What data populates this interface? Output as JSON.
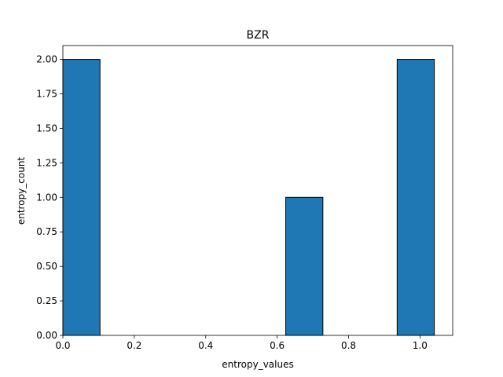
{
  "chart_data": {
    "type": "bar",
    "title": "BZR",
    "xlabel": "entropy_values",
    "ylabel": "entropy_count",
    "xlim": [
      0.0,
      1.0915
    ],
    "ylim": [
      0.0,
      2.1
    ],
    "xticks": [
      0.0,
      0.2,
      0.4,
      0.6,
      0.8,
      1.0
    ],
    "xtick_labels": [
      "0.0",
      "0.2",
      "0.4",
      "0.6",
      "0.8",
      "1.0"
    ],
    "yticks": [
      0.0,
      0.25,
      0.5,
      0.75,
      1.0,
      1.25,
      1.5,
      1.75,
      2.0
    ],
    "ytick_labels": [
      "0.00",
      "0.25",
      "0.50",
      "0.75",
      "1.00",
      "1.25",
      "1.50",
      "1.75",
      "2.00"
    ],
    "bins": [
      {
        "start": 0.0,
        "end": 0.104,
        "count": 2
      },
      {
        "start": 0.104,
        "end": 0.208,
        "count": 0
      },
      {
        "start": 0.208,
        "end": 0.312,
        "count": 0
      },
      {
        "start": 0.312,
        "end": 0.416,
        "count": 0
      },
      {
        "start": 0.416,
        "end": 0.52,
        "count": 0
      },
      {
        "start": 0.52,
        "end": 0.624,
        "count": 0
      },
      {
        "start": 0.624,
        "end": 0.728,
        "count": 1
      },
      {
        "start": 0.728,
        "end": 0.832,
        "count": 0
      },
      {
        "start": 0.832,
        "end": 0.936,
        "count": 0
      },
      {
        "start": 0.936,
        "end": 1.04,
        "count": 2
      }
    ],
    "bar_color": "#1f77b4",
    "edge_color": "#000000",
    "grid": false,
    "legend": "none"
  }
}
